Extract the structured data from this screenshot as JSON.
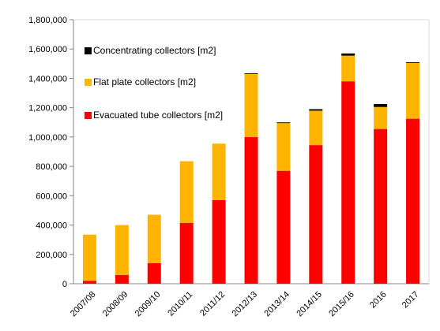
{
  "chart_data": {
    "type": "bar",
    "stacked": true,
    "categories": [
      "2007/08",
      "2008/09",
      "2009/10",
      "2010/11",
      "2011/12",
      "2012/13",
      "2013/14",
      "2014/15",
      "2015/16",
      "2016",
      "2017"
    ],
    "series": [
      {
        "name": "Evacuated tube collectors [m2]",
        "color": "#ff0000",
        "values": [
          20000,
          60000,
          140000,
          415000,
          570000,
          1000000,
          770000,
          945000,
          1380000,
          1055000,
          1125000
        ]
      },
      {
        "name": "Flat plate collectors [m2]",
        "color": "#ffb400",
        "values": [
          315000,
          340000,
          330000,
          420000,
          385000,
          430000,
          325000,
          235000,
          175000,
          150000,
          380000
        ]
      },
      {
        "name": "Concentrating collectors [m2]",
        "color": "#000000",
        "values": [
          0,
          0,
          0,
          0,
          0,
          5000,
          5000,
          10000,
          15000,
          20000,
          5000
        ]
      }
    ],
    "ylim": [
      0,
      1800000
    ],
    "yticks": [
      0,
      200000,
      400000,
      600000,
      800000,
      1000000,
      1200000,
      1400000,
      1600000,
      1800000
    ],
    "ytick_labels": [
      "0",
      "200,000",
      "400,000",
      "600,000",
      "800,000",
      "1,000,000",
      "1,200,000",
      "1,400,000",
      "1,600,000",
      "1,800,000"
    ],
    "legend_placement": "top-left inside plot",
    "legend_order": [
      "Concentrating collectors [m2]",
      "Flat plate collectors [m2]",
      "Evacuated tube collectors [m2]"
    ],
    "grid": false
  }
}
